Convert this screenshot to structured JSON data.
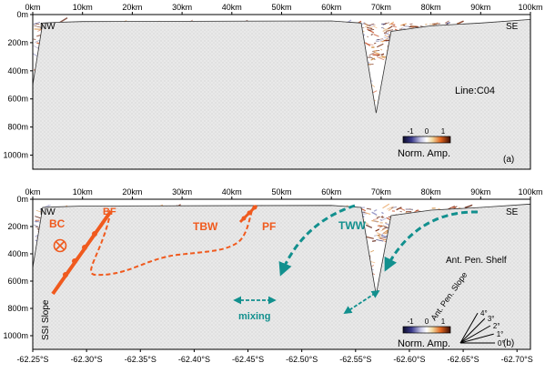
{
  "chart_data": {
    "type": "heatmap",
    "panels": [
      {
        "id": "a",
        "panel_label": "(a)",
        "x_top_ticks": [
          "0km",
          "10km",
          "20km",
          "30km",
          "40km",
          "50km",
          "60km",
          "70km",
          "80km",
          "90km",
          "100km"
        ],
        "x_top_range_km": [
          0,
          100
        ],
        "y_ticks": [
          "0m",
          "200m",
          "400m",
          "600m",
          "800m",
          "1000m"
        ],
        "y_range_m": [
          0,
          1100
        ],
        "corner_left": "NW",
        "corner_right": "SE",
        "line_label": "Line:C04",
        "colorbar": {
          "title": "Norm. Amp.",
          "ticks": [
            "-1",
            "0",
            "1"
          ],
          "range": [
            -1,
            1
          ]
        },
        "seafloor_depth_profile": [
          {
            "km": 0,
            "m": 500
          },
          {
            "km": 2,
            "m": 60
          },
          {
            "km": 5,
            "m": 55
          },
          {
            "km": 10,
            "m": 50
          },
          {
            "km": 60,
            "m": 45
          },
          {
            "km": 66,
            "m": 60
          },
          {
            "km": 69,
            "m": 700
          },
          {
            "km": 72,
            "m": 120
          },
          {
            "km": 80,
            "m": 80
          },
          {
            "km": 90,
            "m": 60
          },
          {
            "km": 100,
            "m": 35
          }
        ]
      },
      {
        "id": "b",
        "panel_label": "(b)",
        "x_top_ticks": [
          "0km",
          "10km",
          "20km",
          "30km",
          "40km",
          "50km",
          "60km",
          "70km",
          "80km",
          "90km",
          "100km"
        ],
        "x_bottom_ticks": [
          "-62.25°S",
          "-62.30°S",
          "-62.35°S",
          "-62.40°S",
          "-62.45°S",
          "-62.50°S",
          "-62.55°S",
          "-62.60°S",
          "-62.65°S",
          "-62.70°S"
        ],
        "x_bottom_range": [
          -62.25,
          -62.7
        ],
        "y_ticks": [
          "0m",
          "200m",
          "400m",
          "600m",
          "800m",
          "1000m"
        ],
        "y_range_m": [
          0,
          1100
        ],
        "corner_left": "NW",
        "corner_right": "SE",
        "colorbar": {
          "title": "Norm. Amp.",
          "ticks": [
            "-1",
            "0",
            "1"
          ],
          "range": [
            -1,
            1
          ]
        },
        "annotations": {
          "bc": "BC",
          "bf": "BF",
          "tbw": "TBW",
          "pf": "PF",
          "tww": "TWW",
          "mixing": "mixing",
          "ant_pen_shelf": "Ant. Pen. Shelf",
          "ant_pen_slope": "Ant. Pen. Slope",
          "ssi_slope": "SSI Slope"
        },
        "slope_angles": [
          "4°",
          "3°",
          "2°",
          "1°",
          "0°"
        ],
        "colors": {
          "front": "#f05a1e",
          "tww_arrow": "#12908e"
        }
      }
    ]
  }
}
